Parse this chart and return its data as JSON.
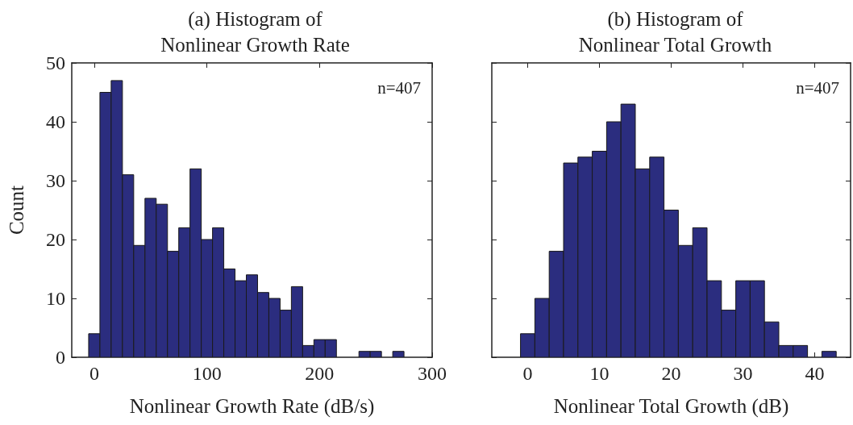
{
  "chart_data": [
    {
      "type": "histogram",
      "title": "(a) Histogram of\nNonlinear Growth Rate",
      "xlabel": "Nonlinear Growth Rate (dB/s)",
      "ylabel": "Count",
      "annotations": [
        "n=407"
      ],
      "color": "#2b2d7f",
      "bins": [
        -5,
        5,
        15,
        25,
        35,
        45,
        55,
        65,
        75,
        85,
        95,
        105,
        115,
        125,
        135,
        145,
        155,
        165,
        175,
        185,
        195,
        205,
        215,
        225,
        235,
        245,
        255,
        265,
        275
      ],
      "values": [
        4,
        45,
        47,
        31,
        19,
        27,
        26,
        18,
        22,
        32,
        20,
        22,
        15,
        13,
        14,
        11,
        10,
        8,
        12,
        2,
        3,
        3,
        0,
        0,
        1,
        1,
        0,
        1
      ],
      "xlim": [
        -20,
        300
      ],
      "xticks": [
        0,
        100,
        200,
        300
      ],
      "ylim": [
        0,
        50
      ],
      "yticks": [
        0,
        10,
        20,
        30,
        40,
        50
      ],
      "grid": false
    },
    {
      "type": "histogram",
      "title": "(b) Histogram of\nNonlinear Total Growth",
      "xlabel": "Nonlinear Total Growth (dB)",
      "annotations": [
        "n=407"
      ],
      "color": "#2b2d7f",
      "bins": [
        -1,
        1,
        3,
        5,
        7,
        9,
        11,
        13,
        15,
        17,
        19,
        21,
        23,
        25,
        27,
        29,
        31,
        33,
        35,
        37,
        39,
        41,
        43
      ],
      "values": [
        4,
        10,
        18,
        33,
        34,
        35,
        40,
        43,
        32,
        34,
        25,
        19,
        22,
        13,
        8,
        13,
        13,
        6,
        2,
        2,
        0,
        1
      ],
      "xlim": [
        -5,
        45
      ],
      "xticks": [
        0,
        10,
        20,
        30,
        40
      ],
      "ylim": [
        0,
        50
      ],
      "yticks": [
        0,
        10,
        20,
        30,
        40,
        50
      ],
      "grid": false,
      "tick_labels": "x"
    }
  ]
}
